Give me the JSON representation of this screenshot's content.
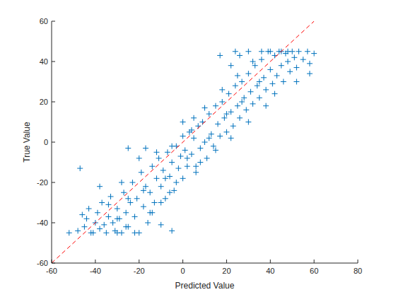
{
  "chart_data": {
    "type": "scatter",
    "x_label": "Predicted Value",
    "y_label": "True Value",
    "xlim": [
      -60,
      80
    ],
    "xticks": [
      -60,
      -40,
      -20,
      0,
      20,
      40,
      60,
      80
    ],
    "ylim": [
      -60,
      60
    ],
    "yticks": [
      -60,
      -40,
      -20,
      0,
      20,
      40,
      60
    ],
    "grid": false,
    "series": [
      {
        "type": "scatter",
        "color": "#0072bd",
        "marker": "plus",
        "x": [
          -52,
          -48,
          -45,
          -44,
          -42,
          -40,
          -39,
          -38,
          -37,
          -36,
          -35,
          -34,
          -33,
          -32,
          -31,
          -30,
          -29,
          -28,
          -27,
          -26,
          -25,
          -24,
          -23,
          -22,
          -21,
          -20,
          -19,
          -18,
          -17,
          -16,
          -15,
          -14,
          -13,
          -12,
          -11,
          -10,
          -9,
          -8,
          -7,
          -6,
          -5,
          -4,
          -3,
          -2,
          -1,
          0,
          0,
          1,
          2,
          3,
          4,
          5,
          6,
          7,
          8,
          9,
          10,
          11,
          12,
          13,
          14,
          15,
          16,
          17,
          18,
          19,
          20,
          21,
          22,
          23,
          24,
          25,
          26,
          27,
          28,
          29,
          30,
          31,
          32,
          33,
          34,
          35,
          36,
          37,
          38,
          39,
          40,
          41,
          42,
          43,
          44,
          45,
          46,
          47,
          48,
          49,
          50,
          51,
          52,
          53,
          55,
          57,
          58,
          60,
          -46,
          -43,
          -41,
          -38,
          -34,
          -30,
          -28,
          -25,
          -22,
          -20,
          -18,
          -15,
          -12,
          -10,
          -8,
          -5,
          -3,
          0,
          2,
          5,
          8,
          10,
          12,
          15,
          18,
          20,
          22,
          25,
          27,
          30,
          32,
          35,
          38,
          40,
          42,
          45,
          -47,
          -25,
          -17,
          -5,
          -10,
          17,
          26,
          22,
          58,
          30,
          -30,
          -26,
          -14,
          -6,
          4,
          6,
          24,
          36,
          48,
          52
        ],
        "values": [
          -45,
          -44,
          -42,
          -38,
          -45,
          -40,
          -35,
          -43,
          -30,
          -41,
          -45,
          -37,
          -27,
          -40,
          -44,
          -33,
          -38,
          -45,
          -25,
          -35,
          -42,
          -30,
          -20,
          -37,
          -28,
          -45,
          -15,
          -32,
          -22,
          -40,
          -25,
          -12,
          -30,
          -18,
          -8,
          -22,
          -14,
          -28,
          -5,
          -17,
          -10,
          -24,
          -2,
          -13,
          -7,
          -18,
          3,
          -4,
          -12,
          5,
          -6,
          2,
          -15,
          8,
          -3,
          10,
          0,
          -8,
          14,
          4,
          -2,
          18,
          9,
          3,
          20,
          12,
          5,
          24,
          15,
          8,
          28,
          18,
          12,
          30,
          22,
          16,
          34,
          25,
          19,
          38,
          28,
          22,
          41,
          32,
          26,
          45,
          36,
          29,
          43,
          33,
          45,
          38,
          30,
          44,
          40,
          35,
          45,
          42,
          37,
          45,
          41,
          45,
          39,
          44,
          -36,
          -33,
          -45,
          -22,
          -31,
          -45,
          -20,
          -28,
          -45,
          -8,
          -24,
          -35,
          -5,
          -30,
          -18,
          -2,
          -20,
          10,
          -8,
          12,
          -10,
          17,
          2,
          -4,
          26,
          14,
          2,
          33,
          20,
          10,
          40,
          30,
          18,
          45,
          24,
          45,
          -13,
          -3,
          -3,
          -44,
          -41,
          43,
          43,
          38,
          34,
          45,
          -38,
          -42,
          -35,
          -25,
          6,
          -12,
          45,
          45,
          45,
          30
        ]
      },
      {
        "type": "line",
        "color": "#ff0000",
        "line_style": "dashed",
        "x": [
          -60,
          60
        ],
        "values": [
          -60,
          60
        ]
      }
    ]
  }
}
